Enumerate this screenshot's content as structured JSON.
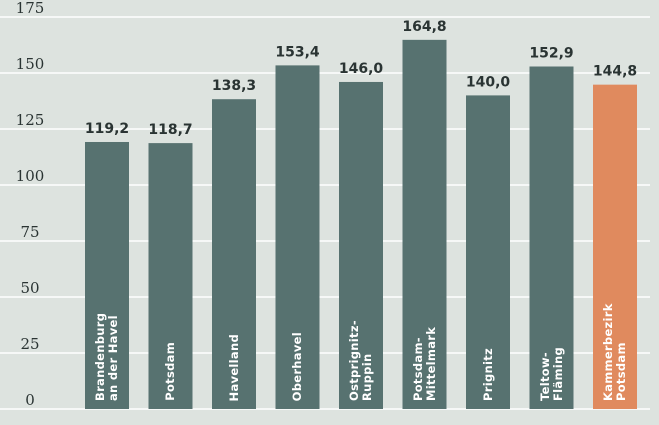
{
  "chart_data": {
    "type": "bar",
    "categories": [
      "Brandenburg an der Havel",
      "Potsdam",
      "Havelland",
      "Oberhavel",
      "Ostprignitz-Ruppin",
      "Potsdam-Mittelmark",
      "Prignitz",
      "Teltow-Fläming",
      "Kammerbezirk Potsdam"
    ],
    "values": [
      119.2,
      118.7,
      138.3,
      153.4,
      146.0,
      164.8,
      140.0,
      152.9,
      144.8
    ],
    "value_labels": [
      "119,2",
      "118,7",
      "138,3",
      "153,4",
      "146,0",
      "164,8",
      "140,0",
      "152,9",
      "144,8"
    ],
    "colors": [
      "#577270",
      "#577270",
      "#577270",
      "#577270",
      "#577270",
      "#577270",
      "#577270",
      "#577270",
      "#e08a5e"
    ],
    "ylim": [
      0,
      175
    ],
    "yticks": [
      0,
      25,
      50,
      75,
      100,
      125,
      150,
      175
    ],
    "grid": true
  }
}
